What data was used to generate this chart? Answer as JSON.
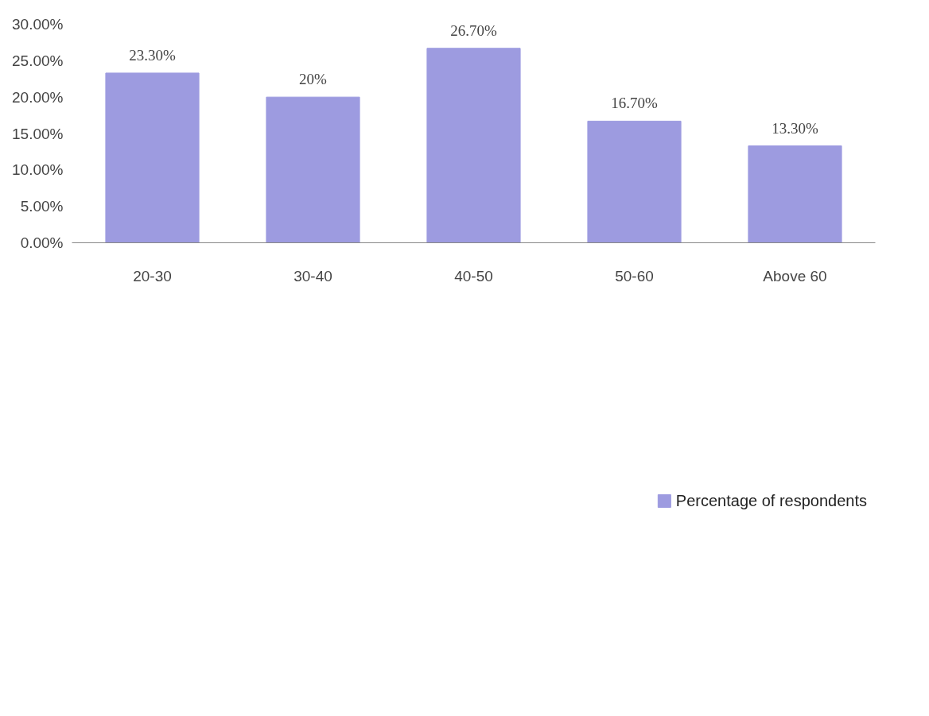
{
  "chart_data": {
    "type": "bar",
    "categories": [
      "20-30",
      "30-40",
      "40-50",
      "50-60",
      "Above 60"
    ],
    "series": [
      {
        "name": "Percentage of respondents",
        "color": "#9d9be0",
        "values": [
          23.3,
          20,
          26.7,
          16.7,
          13.3
        ],
        "value_labels": [
          "23.30%",
          "20%",
          "26.70%",
          "16.70%",
          "13.30%"
        ]
      }
    ],
    "ylim": [
      0,
      30
    ],
    "yticks": [
      {
        "value": 0,
        "label": "0.00%"
      },
      {
        "value": 5,
        "label": "5.00%"
      },
      {
        "value": 10,
        "label": "10.00%"
      },
      {
        "value": 15,
        "label": "15.00%"
      },
      {
        "value": 20,
        "label": "20.00%"
      },
      {
        "value": 25,
        "label": "25.00%"
      },
      {
        "value": 30,
        "label": "30.00%"
      }
    ],
    "grid": false,
    "legend": "bottom"
  }
}
